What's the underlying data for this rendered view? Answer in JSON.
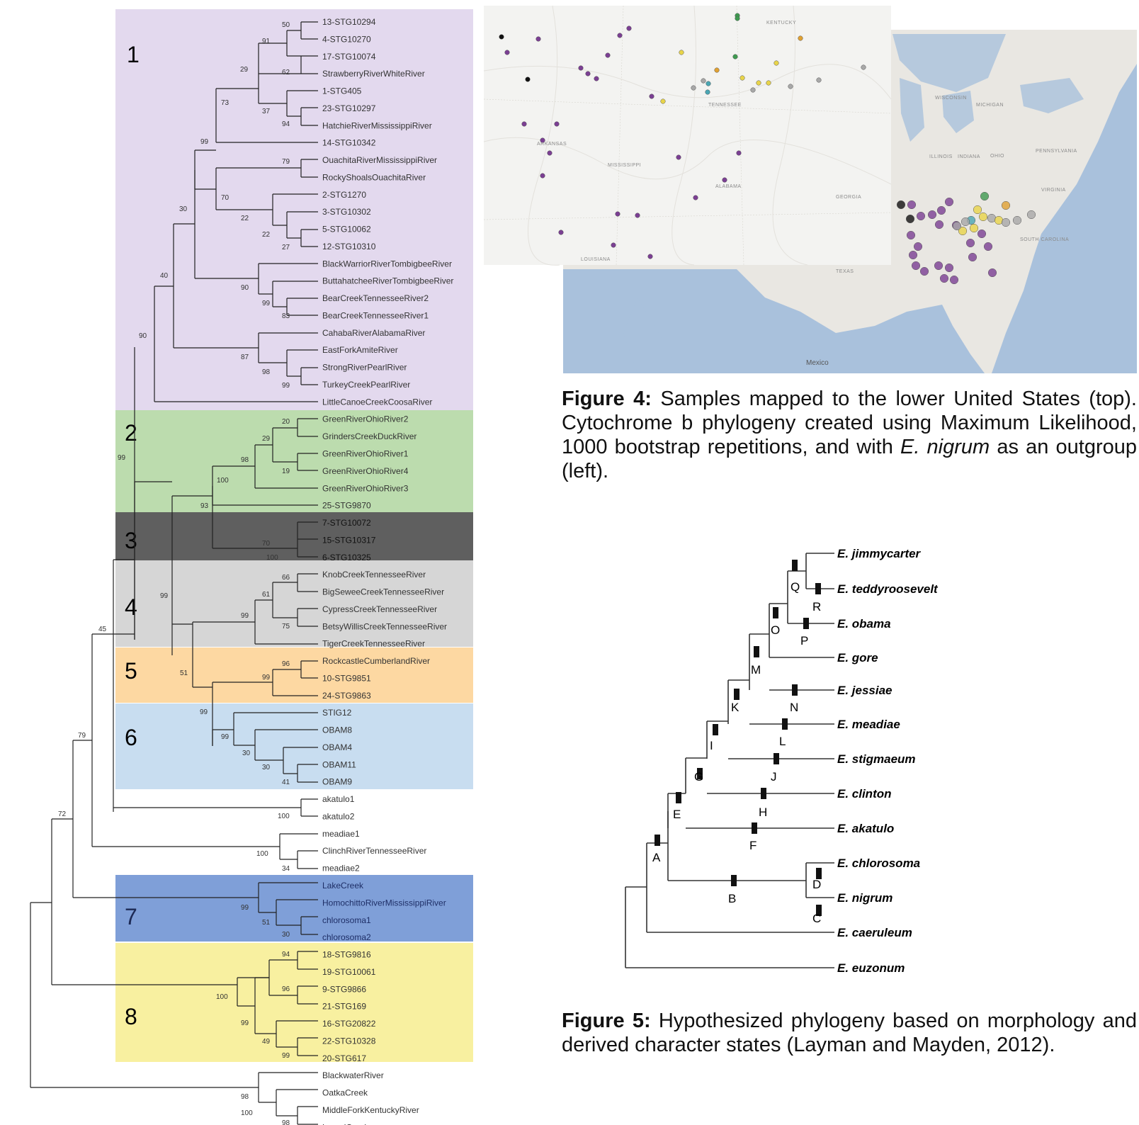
{
  "figure4": {
    "tree": {
      "clade_numbers": [
        "1",
        "2",
        "3",
        "4",
        "5",
        "6",
        "7",
        "8"
      ],
      "leaves": [
        "13-STG10294",
        "4-STG10270",
        "17-STG10074",
        "StrawberryRiverWhiteRiver",
        "1-STG405",
        "23-STG10297",
        "HatchieRiverMississippiRiver",
        "14-STG10342",
        "OuachitaRiverMississippiRiver",
        "RockyShoalsOuachitaRiver",
        "2-STG1270",
        "3-STG10302",
        "5-STG10062",
        "12-STG10310",
        "BlackWarriorRiverTombigbeeRiver",
        "ButtahatcheeRiverTombigbeeRiver",
        "BearCreekTennesseeRiver2",
        "BearCreekTennesseeRiver1",
        "CahabaRiverAlabamaRiver",
        "EastForkAmiteRiver",
        "StrongRiverPearlRiver",
        "TurkeyCreekPearlRiver",
        "LittleCanoeCreekCoosaRiver",
        "GreenRiverOhioRiver2",
        "GrindersCreekDuckRiver",
        "GreenRiverOhioRiver1",
        "GreenRiverOhioRiver4",
        "GreenRiverOhioRiver3",
        "25-STG9870",
        "7-STG10072",
        "15-STG10317",
        "6-STG10325",
        "KnobCreekTennesseeRiver",
        "BigSeweeCreekTennesseeRiver",
        "CypressCreekTennesseeRiver",
        "BetsyWillisCreekTennesseeRiver",
        "TigerCreekTennesseeRiver",
        "RockcastleCumberlandRiver",
        "10-STG9851",
        "24-STG9863",
        "STIG12",
        "OBAM8",
        "OBAM4",
        "OBAM11",
        "OBAM9",
        "akatulo1",
        "akatulo2",
        "meadiae1",
        "ClinchRiverTennesseeRiver",
        "meadiae2",
        "LakeCreek",
        "HomochittoRiverMississippiRiver",
        "chlorosoma1",
        "chlorosoma2",
        "18-STG9816",
        "19-STG10061",
        "9-STG9866",
        "21-STG169",
        "16-STG20822",
        "22-STG10328",
        "20-STG617",
        "BlackwaterRiver",
        "OatkaCreek",
        "MiddleForkKentuckyRiver",
        "LaurelCreek"
      ],
      "bootstrap": {
        "n50": "50",
        "n91": "91",
        "n62": "62",
        "n29": "29",
        "n37": "37",
        "n94": "94",
        "n73": "73",
        "n99a": "99",
        "n79": "79",
        "n70": "70",
        "n22a": "22",
        "n22b": "22",
        "n27": "27",
        "n30": "30",
        "n40": "40",
        "n90a": "90",
        "n99b": "99",
        "n83": "83",
        "n87": "87",
        "n98a": "98",
        "n99c": "99",
        "n90b": "90",
        "n99d": "99",
        "n20": "20",
        "n29b": "29",
        "n98b": "98",
        "n19": "19",
        "n100a": "100",
        "n93": "93",
        "n70b": "70",
        "n100b": "100",
        "n66": "66",
        "n61": "61",
        "n99e": "99",
        "n75": "75",
        "n99f": "99",
        "n96": "96",
        "n99g": "99",
        "n51": "51",
        "n99h": "99",
        "n99i": "99",
        "n30b": "30",
        "n30c": "30",
        "n41": "41",
        "n100c": "100",
        "n45": "45",
        "n100d": "100",
        "n34": "34",
        "n79b": "79",
        "n99j": "99",
        "n51b": "51",
        "n30d": "30",
        "n72": "72",
        "n94b": "94",
        "n96b": "96",
        "n100e": "100",
        "n99k": "99",
        "n49": "49",
        "n99l": "99",
        "n98c": "98",
        "n100f": "100",
        "n98d": "98"
      },
      "clade_colors": {
        "1": "#e3d9ee",
        "2": "#bcdcae",
        "3": "#5f5f5f",
        "4": "#d6d6d6",
        "5": "#fdd8a2",
        "6": "#c8ddf0",
        "7": "#7f9fd8",
        "8": "#f8f0a0"
      }
    },
    "map": {
      "labels": [
        "KENTUCKY",
        "TENNESSEE",
        "ARKANSAS",
        "MISSISSIPPI",
        "ALABAMA",
        "GEORGIA",
        "LOUISIANA",
        "Mexico",
        "WISCONSIN",
        "MICHIGAN",
        "ILLINOIS",
        "INDIANA",
        "OHIO",
        "PENNSYLVANIA",
        "VIRGINIA",
        "TEXAS",
        "SOUTH CAROLINA"
      ],
      "marker_colors": {
        "purple": "#7b3f93",
        "black": "#111111",
        "yellow": "#e8d44a",
        "orange": "#e0a133",
        "green": "#3e9a50",
        "teal": "#4aa6b3",
        "grey": "#a8a8a8"
      }
    },
    "caption": {
      "label": "Figure 4:",
      "text": " Samples mapped to the lower United States (top). Cytochrome b phylogeny created using Maximum Likelihood, 1000 bootstrap repetitions, and with ",
      "italic": "E. nigrum",
      "text_end": " as an outgroup (left)."
    }
  },
  "figure5": {
    "species": [
      "E. jimmycarter",
      "E. teddyroosevelt",
      "E. obama",
      "E. gore",
      "E. jessiae",
      "E. meadiae",
      "E. stigmaeum",
      "E. clinton",
      "E. akatulo",
      "E. chlorosoma",
      "E. nigrum",
      "E. caeruleum",
      "E. euzonum"
    ],
    "node_letters": [
      "A",
      "B",
      "C",
      "D",
      "E",
      "F",
      "G",
      "H",
      "I",
      "J",
      "K",
      "L",
      "M",
      "N",
      "O",
      "P",
      "Q",
      "R"
    ],
    "caption": {
      "label": "Figure 5:",
      "text": " Hypothesized phylogeny based on morphology and derived character states (Layman and Mayden, 2012)."
    }
  }
}
